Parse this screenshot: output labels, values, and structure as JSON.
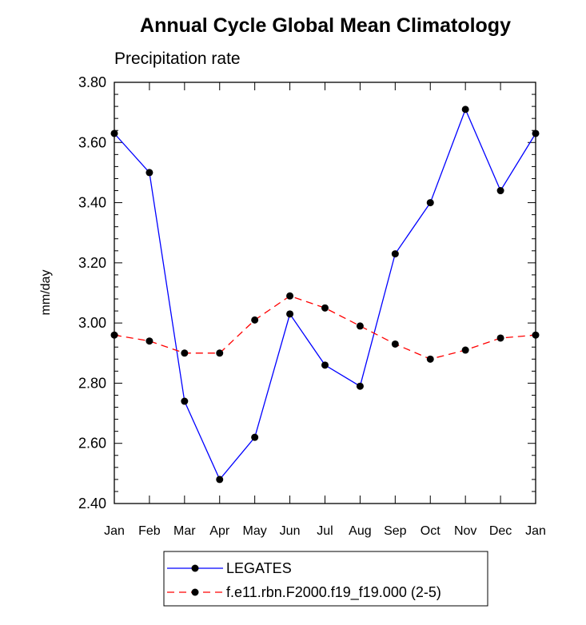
{
  "chart_data": {
    "type": "line",
    "title": "Annual Cycle Global Mean Climatology",
    "subtitle": "Precipitation rate",
    "xlabel": "",
    "ylabel": "mm/day",
    "categories": [
      "Jan",
      "Feb",
      "Mar",
      "Apr",
      "May",
      "Jun",
      "Jul",
      "Aug",
      "Sep",
      "Oct",
      "Nov",
      "Dec",
      "Jan"
    ],
    "ylim": [
      2.4,
      3.8
    ],
    "yticks": [
      "2.40",
      "2.60",
      "2.80",
      "3.00",
      "3.20",
      "3.40",
      "3.60",
      "3.80"
    ],
    "grid": false,
    "legend_position": "bottom",
    "series": [
      {
        "name": "LEGATES",
        "color": "#0000ff",
        "line_style": "solid",
        "values": [
          3.63,
          3.5,
          2.74,
          2.48,
          2.62,
          3.03,
          2.86,
          2.79,
          3.23,
          3.4,
          3.71,
          3.44,
          3.63
        ]
      },
      {
        "name": "f.e11.rbn.F2000.f19_f19.000 (2-5)",
        "color": "#ff0000",
        "line_style": "dashed",
        "values": [
          2.96,
          2.94,
          2.9,
          2.9,
          3.01,
          3.09,
          3.05,
          2.99,
          2.93,
          2.88,
          2.91,
          2.95,
          2.96
        ]
      }
    ]
  }
}
